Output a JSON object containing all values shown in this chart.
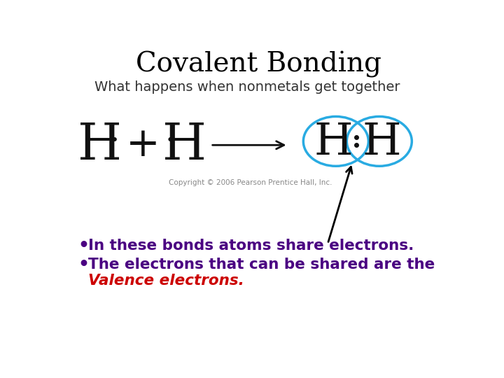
{
  "title": "Covalent Bonding",
  "subtitle": "What happens when nonmetals get together",
  "copyright": "Copyright © 2006 Pearson Prentice Hall, Inc.",
  "bullet1": "In these bonds atoms share electrons.",
  "bullet2_part1": "The electrons that can be shared are the",
  "bullet2_part2": "Valence electrons.",
  "background_color": "#ffffff",
  "title_color": "#000000",
  "subtitle_color": "#333333",
  "bullet_color": "#4b0082",
  "valence_color": "#cc0000",
  "circle_color": "#29abe2",
  "arrow_color": "#000000",
  "eq_color": "#111111"
}
